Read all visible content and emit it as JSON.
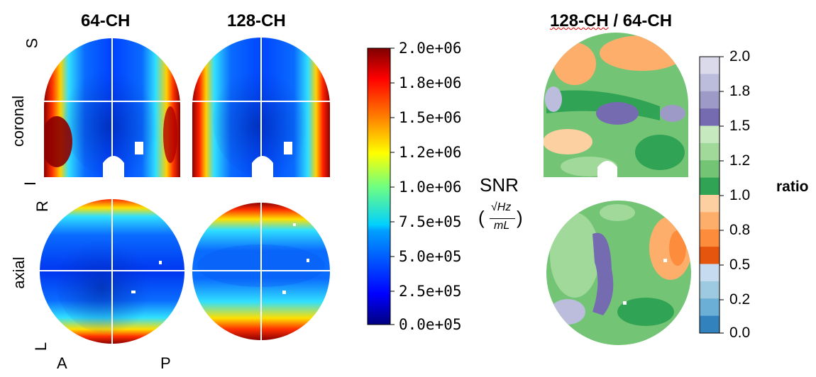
{
  "titles": {
    "col1": "64-CH",
    "col2": "128-CH",
    "ratio": "128-CH / 64-CH",
    "ratio_part1": "128-CH",
    "ratio_part2": " / 64-CH"
  },
  "row_labels": {
    "coronal": "coronal",
    "axial": "axial"
  },
  "orientation": {
    "S": "S",
    "I": "I",
    "R": "R",
    "L": "L",
    "A": "A",
    "P": "P"
  },
  "snr_label": {
    "name": "SNR",
    "unit_num": "√Hz",
    "unit_den": "mL"
  },
  "ratio_label": "ratio",
  "snr_colorbar": {
    "ticks": [
      "2.0e+06",
      "1.8e+06",
      "1.5e+06",
      "1.2e+06",
      "1.0e+06",
      "7.5e+05",
      "5.0e+05",
      "2.5e+05",
      "0.0e+05"
    ],
    "colormap": "jet"
  },
  "ratio_colorbar": {
    "ticks": [
      "2.0",
      "1.8",
      "1.5",
      "1.2",
      "1.0",
      "0.8",
      "0.5",
      "0.2",
      "0.0"
    ],
    "colors": [
      "#dadaeb",
      "#bcbddc",
      "#9e9ac8",
      "#756bb1",
      "#c7e9c0",
      "#a1d99b",
      "#74c476",
      "#31a354",
      "#fdd0a2",
      "#fdae6b",
      "#fd8d3c",
      "#e6550d",
      "#c6dbef",
      "#9ecae1",
      "#6baed6",
      "#3182bd"
    ]
  }
}
